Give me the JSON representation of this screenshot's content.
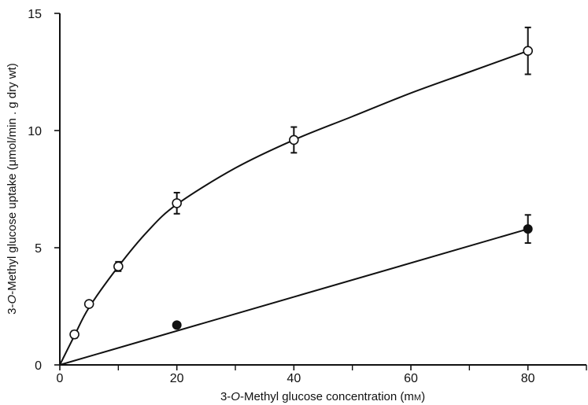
{
  "chart_data": {
    "type": "line",
    "xlabel_parts": [
      "3-",
      "O",
      "-Methyl glucose concentration (m",
      "M",
      ")"
    ],
    "ylabel_parts": [
      "3-",
      "O",
      "-Methyl glucose uptake (",
      "μ",
      "mol/min . g dry wt)"
    ],
    "xlim": [
      0,
      90
    ],
    "ylim": [
      0,
      15
    ],
    "x_ticks": [
      0,
      20,
      40,
      60,
      80
    ],
    "x_minor_ticks": [
      10,
      30,
      50,
      70,
      90
    ],
    "y_ticks": [
      0,
      5,
      10,
      15
    ],
    "grid": false,
    "series": [
      {
        "marker": "open-circle",
        "points": [
          {
            "x": 2.5,
            "y": 1.3,
            "err": 0.15
          },
          {
            "x": 5,
            "y": 2.6,
            "err": 0.1
          },
          {
            "x": 10,
            "y": 4.2,
            "err": 0.2
          },
          {
            "x": 20,
            "y": 6.9,
            "err": 0.45
          },
          {
            "x": 40,
            "y": 9.6,
            "err": 0.55
          },
          {
            "x": 80,
            "y": 13.4,
            "err": 1.0
          }
        ],
        "curve": [
          [
            0,
            0
          ],
          [
            2.5,
            1.25
          ],
          [
            5,
            2.45
          ],
          [
            10,
            4.2
          ],
          [
            15,
            5.7
          ],
          [
            20,
            6.85
          ],
          [
            30,
            8.4
          ],
          [
            40,
            9.6
          ],
          [
            50,
            10.6
          ],
          [
            60,
            11.6
          ],
          [
            70,
            12.5
          ],
          [
            80,
            13.4
          ]
        ]
      },
      {
        "marker": "filled-circle",
        "points": [
          {
            "x": 20,
            "y": 1.7,
            "err": 0
          },
          {
            "x": 80,
            "y": 5.8,
            "err": 0.6
          }
        ],
        "curve": [
          [
            0,
            0
          ],
          [
            80,
            5.8
          ]
        ]
      }
    ]
  }
}
